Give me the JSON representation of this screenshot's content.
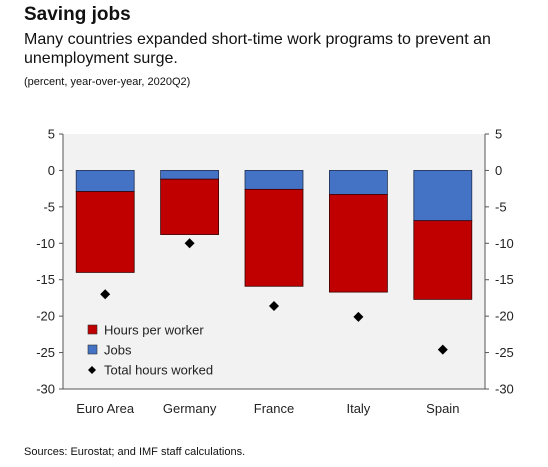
{
  "header": {
    "title": "Saving jobs",
    "subtitle": "Many countries expanded short-time work programs to prevent an unemployment surge.",
    "note": "(percent, year-over-year, 2020Q2)"
  },
  "footer": {
    "source": "Sources: Eurostat; and IMF staff calculations."
  },
  "colors": {
    "hours": "#c00000",
    "jobs": "#4472c4",
    "total": "#000000",
    "plot_background": "#f2f2f2",
    "axis": "#555555"
  },
  "chart_data": {
    "type": "bar",
    "stacked": true,
    "categories": [
      "Euro Area",
      "Germany",
      "France",
      "Italy",
      "Spain"
    ],
    "series": [
      {
        "name": "Hours per worker",
        "kind": "bar",
        "color": "#c00000",
        "values": [
          -11.1,
          -7.6,
          -13.3,
          -13.4,
          -10.8
        ]
      },
      {
        "name": "Jobs",
        "kind": "bar",
        "color": "#4472c4",
        "values": [
          -2.9,
          -1.2,
          -2.6,
          -3.3,
          -6.9
        ]
      },
      {
        "name": "Total hours worked",
        "kind": "marker",
        "color": "#000000",
        "values": [
          -17.0,
          -10.0,
          -18.6,
          -20.1,
          -24.6
        ]
      }
    ],
    "ylim": [
      -30,
      5
    ],
    "yticks": [
      5,
      0,
      -5,
      -10,
      -15,
      -20,
      -25,
      -30
    ],
    "ytick_labels": [
      "5",
      "0",
      "-5",
      "-10",
      "-15",
      "-20",
      "-25",
      "-30"
    ],
    "xlabel": "",
    "ylabel": "",
    "grid": false,
    "legend_position": "bottom-left",
    "legend": [
      "Hours per worker",
      "Jobs",
      "Total hours worked"
    ]
  }
}
